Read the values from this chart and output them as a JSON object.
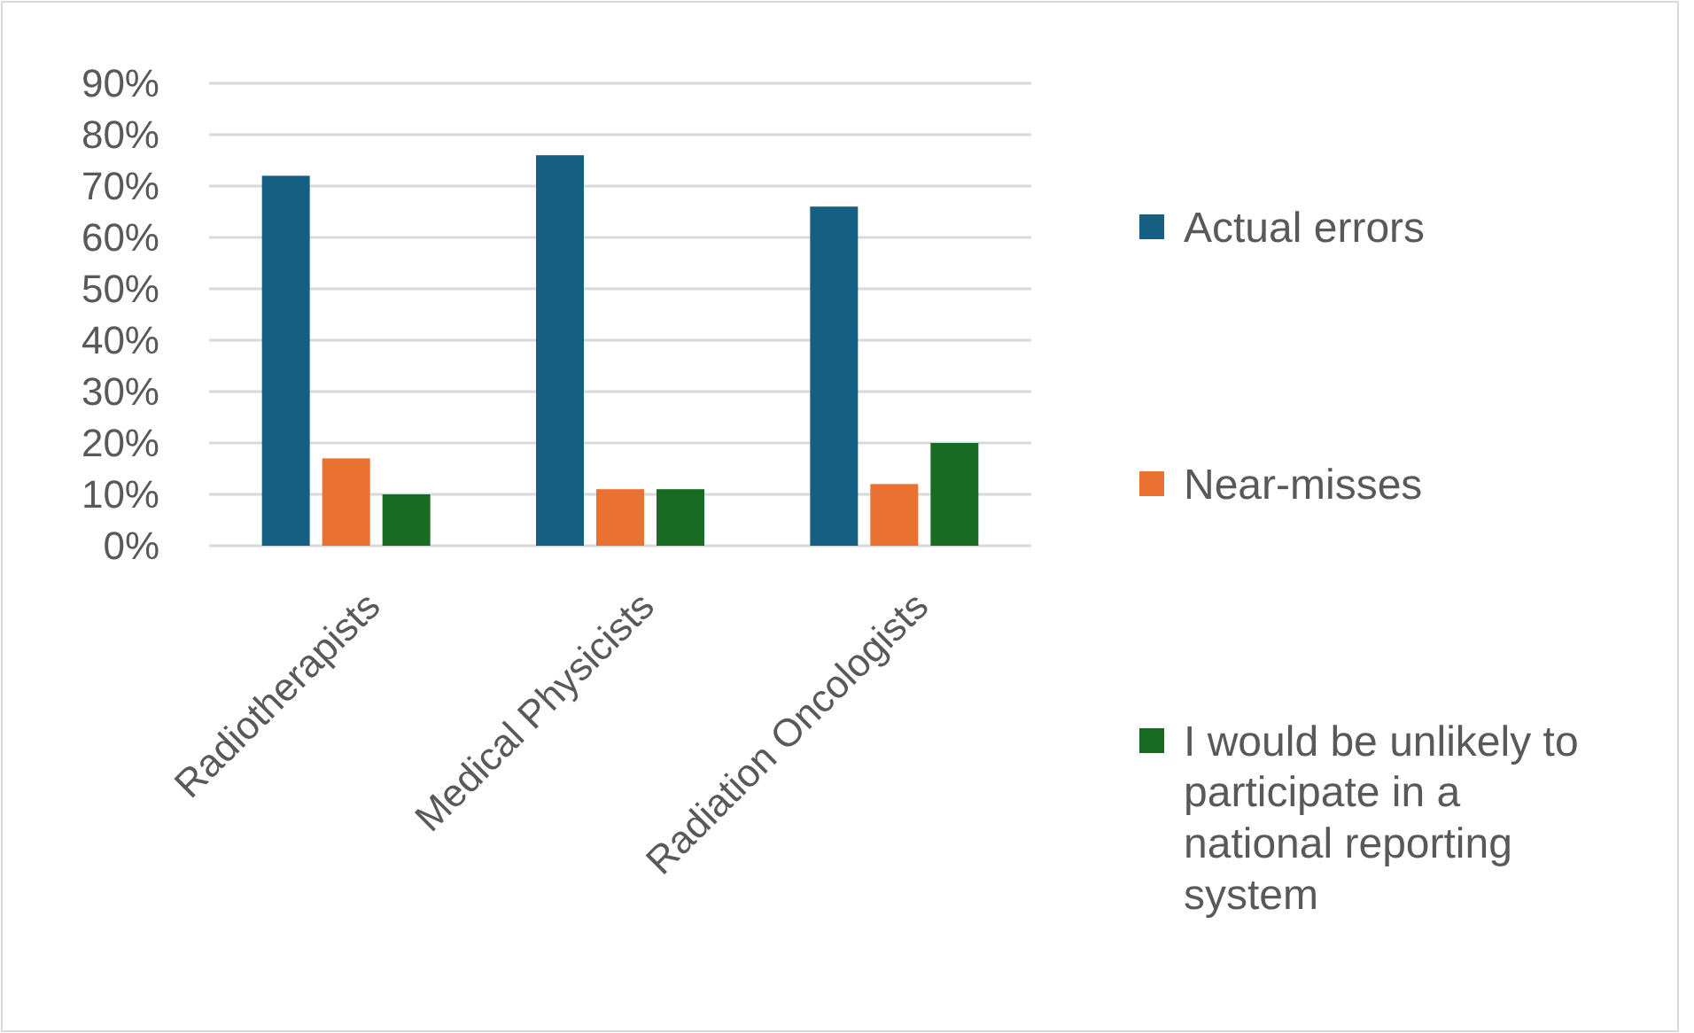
{
  "chart_data": {
    "type": "bar",
    "categories": [
      "Radiotherapists",
      "Medical Physicists",
      "Radiation Oncologists"
    ],
    "series": [
      {
        "name": "Actual errors",
        "color": "#156082",
        "values": [
          72,
          76,
          66
        ]
      },
      {
        "name": "Near-misses",
        "color": "#e97132",
        "values": [
          17,
          11,
          12
        ]
      },
      {
        "name": "I would be unlikely to participate in a national reporting system",
        "color": "#196b24",
        "values": [
          10,
          11,
          20
        ]
      }
    ],
    "ylim": [
      0,
      90
    ],
    "yticks": [
      {
        "value": 0,
        "label": "0%"
      },
      {
        "value": 10,
        "label": "10%"
      },
      {
        "value": 20,
        "label": "20%"
      },
      {
        "value": 30,
        "label": "30%"
      },
      {
        "value": 40,
        "label": "40%"
      },
      {
        "value": 50,
        "label": "50%"
      },
      {
        "value": 60,
        "label": "60%"
      },
      {
        "value": 70,
        "label": "70%"
      },
      {
        "value": 80,
        "label": "80%"
      },
      {
        "value": 90,
        "label": "90%"
      }
    ],
    "grid": "y",
    "legend": "right"
  }
}
